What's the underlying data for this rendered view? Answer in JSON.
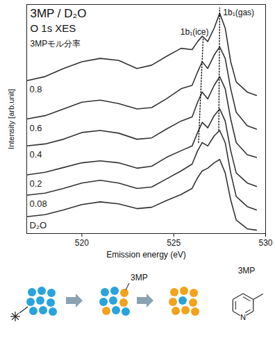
{
  "chart_data": {
    "type": "line",
    "title": "3MP / D₂O",
    "subtitle": "O 1s XES",
    "series_label": "3MPモル分率",
    "x_label": "Emission energy (eV)",
    "y_label": "Intensity [arb.unit]",
    "x": [
      517,
      518,
      519,
      520,
      521,
      522,
      523,
      523.8,
      524.6,
      525.4,
      526.0,
      526.3,
      526.55,
      526.85,
      527.2,
      527.5,
      527.8,
      528.1,
      528.4,
      529,
      529.5
    ],
    "series": [
      {
        "name": "0.8",
        "color": "#333333",
        "values": [
          227,
          233,
          245,
          255,
          260,
          257,
          245,
          250,
          263,
          275,
          273,
          285,
          293,
          285,
          305,
          327,
          305,
          255,
          225,
          210,
          205
        ]
      },
      {
        "name": "0.6",
        "color": "#333333",
        "values": [
          170,
          175,
          185,
          195,
          198,
          193,
          185,
          187,
          200,
          215,
          220,
          240,
          255,
          245,
          265,
          277,
          260,
          215,
          180,
          160,
          155
        ]
      },
      {
        "name": "0.4",
        "color": "#333333",
        "values": [
          130,
          133,
          140,
          150,
          153,
          149,
          140,
          142,
          155,
          167,
          173,
          195,
          210,
          200,
          220,
          233,
          215,
          170,
          135,
          117,
          113
        ]
      },
      {
        "name": "0.2",
        "color": "#333333",
        "values": [
          87,
          91,
          98,
          105,
          108,
          105,
          97,
          100,
          113,
          123,
          130,
          150,
          165,
          157,
          175,
          185,
          167,
          123,
          90,
          75,
          70
        ]
      },
      {
        "name": "0.08",
        "color": "#333333",
        "values": [
          57,
          60,
          67,
          75,
          79,
          75,
          67,
          69,
          81,
          93,
          103,
          123,
          135,
          130,
          145,
          153,
          135,
          90,
          55,
          40,
          35
        ]
      },
      {
        "name": "D₂O",
        "color": "#333333",
        "values": [
          25,
          28,
          35,
          43,
          47,
          44,
          37,
          39,
          49,
          58,
          67,
          83,
          93,
          97,
          105,
          110,
          90,
          50,
          20,
          7,
          5
        ]
      }
    ],
    "guide_lines": [
      {
        "name": "1b₁(ice)",
        "x": [
          526.35,
          526.6
        ],
        "y": [
          135,
          290
        ],
        "line_style": "dotted",
        "color": "#111111"
      },
      {
        "name": "1b₁(gas)",
        "x": [
          527.45,
          527.5
        ],
        "y": [
          153,
          335
        ],
        "line_style": "dotted",
        "color": "#111111"
      }
    ],
    "xlim": [
      517,
      530
    ],
    "xticks": [
      520,
      525,
      530
    ],
    "ylim": [
      0,
      340
    ],
    "yticks": [],
    "tick_labels": "x",
    "grid": false
  },
  "diagram": {
    "mixture_label": "3MP",
    "molecule_label": "3MP",
    "ring_atom": "N",
    "water_color": "#29a3dc",
    "solute_color": "#f2a31b"
  }
}
